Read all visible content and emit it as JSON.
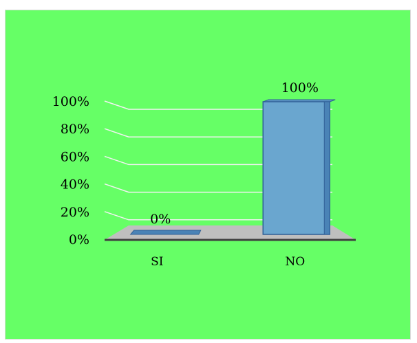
{
  "chart_data": {
    "type": "bar",
    "categories": [
      "SI",
      "NO"
    ],
    "values": [
      0,
      100
    ],
    "data_labels": [
      "0%",
      "100%"
    ],
    "y_ticks": [
      "0%",
      "20%",
      "40%",
      "60%",
      "80%",
      "100%"
    ],
    "ylim": [
      0,
      100
    ],
    "grid": true,
    "legend": "none",
    "colors": {
      "background": "#66ff66",
      "bar_front": "#6aa6cf",
      "bar_side": "#4a83b6",
      "bar_top": "#5d94c4",
      "bar_edge": "#2f5f96",
      "floor": "#bfbfbf",
      "gridline": "#f2f2f2"
    }
  }
}
